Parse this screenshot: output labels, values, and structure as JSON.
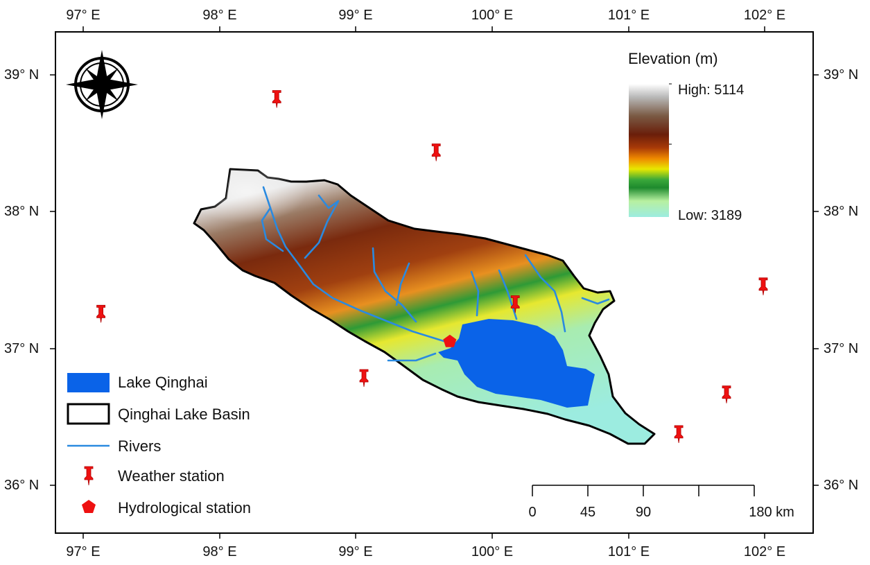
{
  "axes": {
    "longitudes": [
      "97° E",
      "98° E",
      "99° E",
      "100° E",
      "101° E",
      "102° E"
    ],
    "latitudes": [
      "39° N",
      "38° N",
      "37° N",
      "36° N"
    ]
  },
  "elevation_legend": {
    "title": "Elevation (m)",
    "high": "High: 5114",
    "low": "Low: 3189",
    "colors": [
      "#ffffff",
      "#b8b8b8",
      "#7a5a44",
      "#6a1e0a",
      "#a83a08",
      "#ee8800",
      "#e8e800",
      "#3aa83a",
      "#1e8a2e",
      "#b8f0a0",
      "#9cece0"
    ]
  },
  "legend": {
    "lake": "Lake Qinghai",
    "basin": "Qinghai Lake Basin",
    "rivers": "Rivers",
    "weather": "Weather station",
    "hydro": "Hydrological station"
  },
  "scale_bar": {
    "ticks": [
      "0",
      "45",
      "90",
      "180 km"
    ]
  },
  "colors": {
    "lake": "#0a63e8",
    "river": "#2a8ae0",
    "station": "#ee1111",
    "basin_outline": "#000000"
  },
  "icons": {
    "compass": "compass-rose-icon",
    "weather_station": "push-pin-icon",
    "hydro_station": "pentagon-icon"
  },
  "weather_stations": [
    {
      "lon": 98.42,
      "lat": 38.83
    },
    {
      "lon": 99.59,
      "lat": 38.44
    },
    {
      "lon": 97.13,
      "lat": 37.26
    },
    {
      "lon": 100.17,
      "lat": 37.33
    },
    {
      "lon": 101.99,
      "lat": 37.46
    },
    {
      "lon": 99.06,
      "lat": 36.79
    },
    {
      "lon": 101.72,
      "lat": 36.67
    },
    {
      "lon": 101.37,
      "lat": 36.38
    }
  ],
  "hydro_stations": [
    {
      "lon": 99.69,
      "lat": 37.05
    }
  ]
}
